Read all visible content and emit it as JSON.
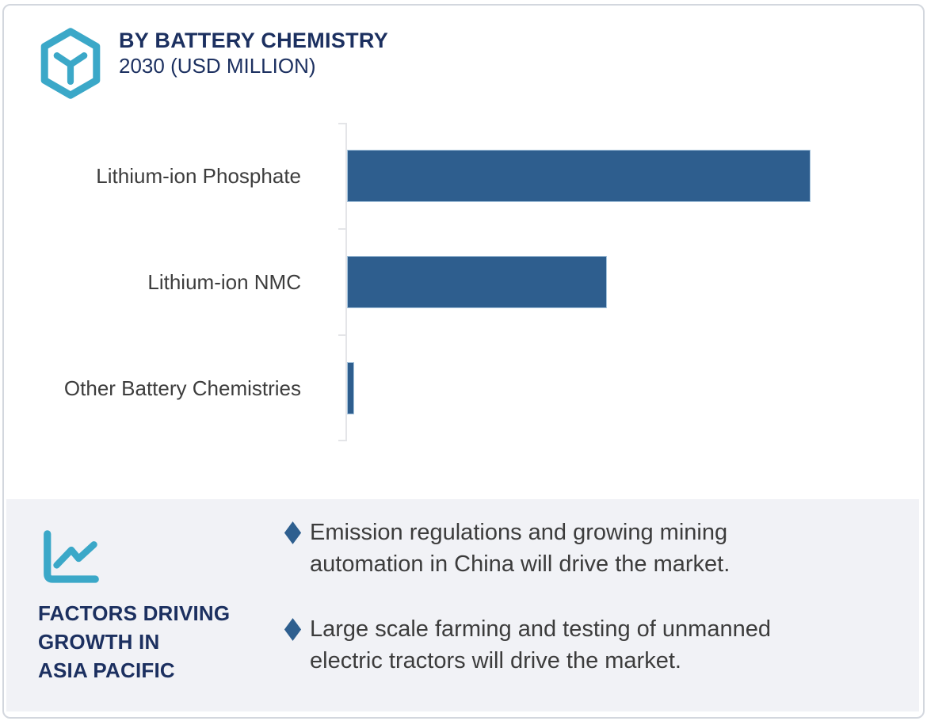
{
  "header": {
    "icon": "hexagon-cube-icon",
    "title": "BY BATTERY CHEMISTRY",
    "subtitle": "2030 (USD MILLION)"
  },
  "chart_data": {
    "type": "bar",
    "orientation": "horizontal",
    "title": "BY BATTERY CHEMISTRY",
    "subtitle": "2030 (USD MILLION)",
    "categories": [
      "Lithium-ion Phosphate",
      "Lithium-ion NMC",
      "Other Battery Chemistries"
    ],
    "values": [
      100,
      56,
      1.5
    ],
    "values_note": "no numeric axis or data labels shown; values estimated as % of largest bar",
    "xlabel": "",
    "ylabel": "",
    "xlim": [
      0,
      100
    ],
    "grid": false,
    "legend": false,
    "bar_color": "#2E5E8E"
  },
  "factors": {
    "icon": "line-chart-icon",
    "heading": "FACTORS DRIVING\nGROWTH IN\nASIA PACIFIC",
    "items": [
      {
        "bullet": "diamond",
        "text": "Emission regulations and growing mining\nautomation in China will drive the market."
      },
      {
        "bullet": "diamond",
        "text": "Large scale farming and testing of unmanned\nelectric tractors will drive the market."
      }
    ]
  },
  "colors": {
    "teal_accent": "#3BA8C8",
    "navy_text": "#1C3060",
    "bar_blue": "#2E5E8E",
    "bar_border": "#A5C3DC",
    "bullet_diamond": "#2E5F8F",
    "panel_background": "#F1F2F6",
    "body_text": "#3C3C3C",
    "axis_gray": "#E4E5E8",
    "card_border": "#D3D7DE"
  }
}
